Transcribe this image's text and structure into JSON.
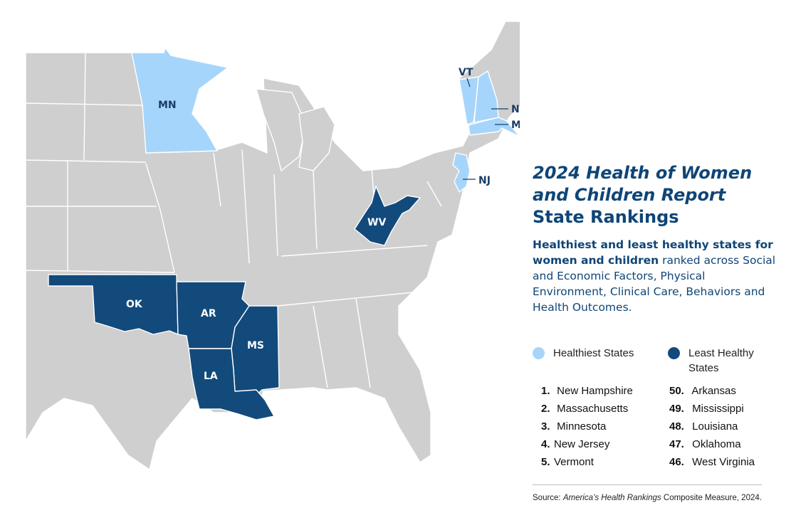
{
  "map": {
    "states": [
      {
        "abbr": "MN",
        "category": "healthiest"
      },
      {
        "abbr": "VT",
        "category": "healthiest"
      },
      {
        "abbr": "NH",
        "category": "healthiest"
      },
      {
        "abbr": "MA",
        "category": "healthiest"
      },
      {
        "abbr": "NJ",
        "category": "healthiest"
      },
      {
        "abbr": "WV",
        "category": "least_healthy"
      },
      {
        "abbr": "OK",
        "category": "least_healthy"
      },
      {
        "abbr": "AR",
        "category": "least_healthy"
      },
      {
        "abbr": "MS",
        "category": "least_healthy"
      },
      {
        "abbr": "LA",
        "category": "least_healthy"
      }
    ],
    "colors": {
      "healthiest": "#a6d5fb",
      "least_healthy": "#134a7c",
      "other": "#cfcfcf"
    }
  },
  "title": {
    "line1": "2024 Health of Women",
    "line2": "and Children Report",
    "line3": "State Rankings"
  },
  "subtitle": {
    "bold": "Healthiest and least healthy states for women and children",
    "rest": " ranked across Social and Economic Factors, Physical Environment, Clinical Care, Behaviors and Health Outcomes."
  },
  "legend": {
    "healthiest": {
      "label": "Healthiest States",
      "color": "#a6d5fb"
    },
    "least_healthy": {
      "label": "Least Healthy States",
      "color": "#134a7c"
    }
  },
  "rankings": {
    "healthiest": [
      {
        "rank": "1.",
        "state": "New Hampshire"
      },
      {
        "rank": "2.",
        "state": "Massachusetts"
      },
      {
        "rank": "3.",
        "state": "Minnesota"
      },
      {
        "rank": "4.",
        "state": "New Jersey"
      },
      {
        "rank": "5.",
        "state": "Vermont"
      }
    ],
    "least_healthy": [
      {
        "rank": "50.",
        "state": "Arkansas"
      },
      {
        "rank": "49.",
        "state": "Mississippi"
      },
      {
        "rank": "48.",
        "state": "Louisiana"
      },
      {
        "rank": "47.",
        "state": "Oklahoma"
      },
      {
        "rank": "46.",
        "state": "West Virginia"
      }
    ]
  },
  "source": {
    "prefix": "Source: ",
    "italic": "America’s Health Rankings",
    "suffix": " Composite Measure, 2024."
  }
}
